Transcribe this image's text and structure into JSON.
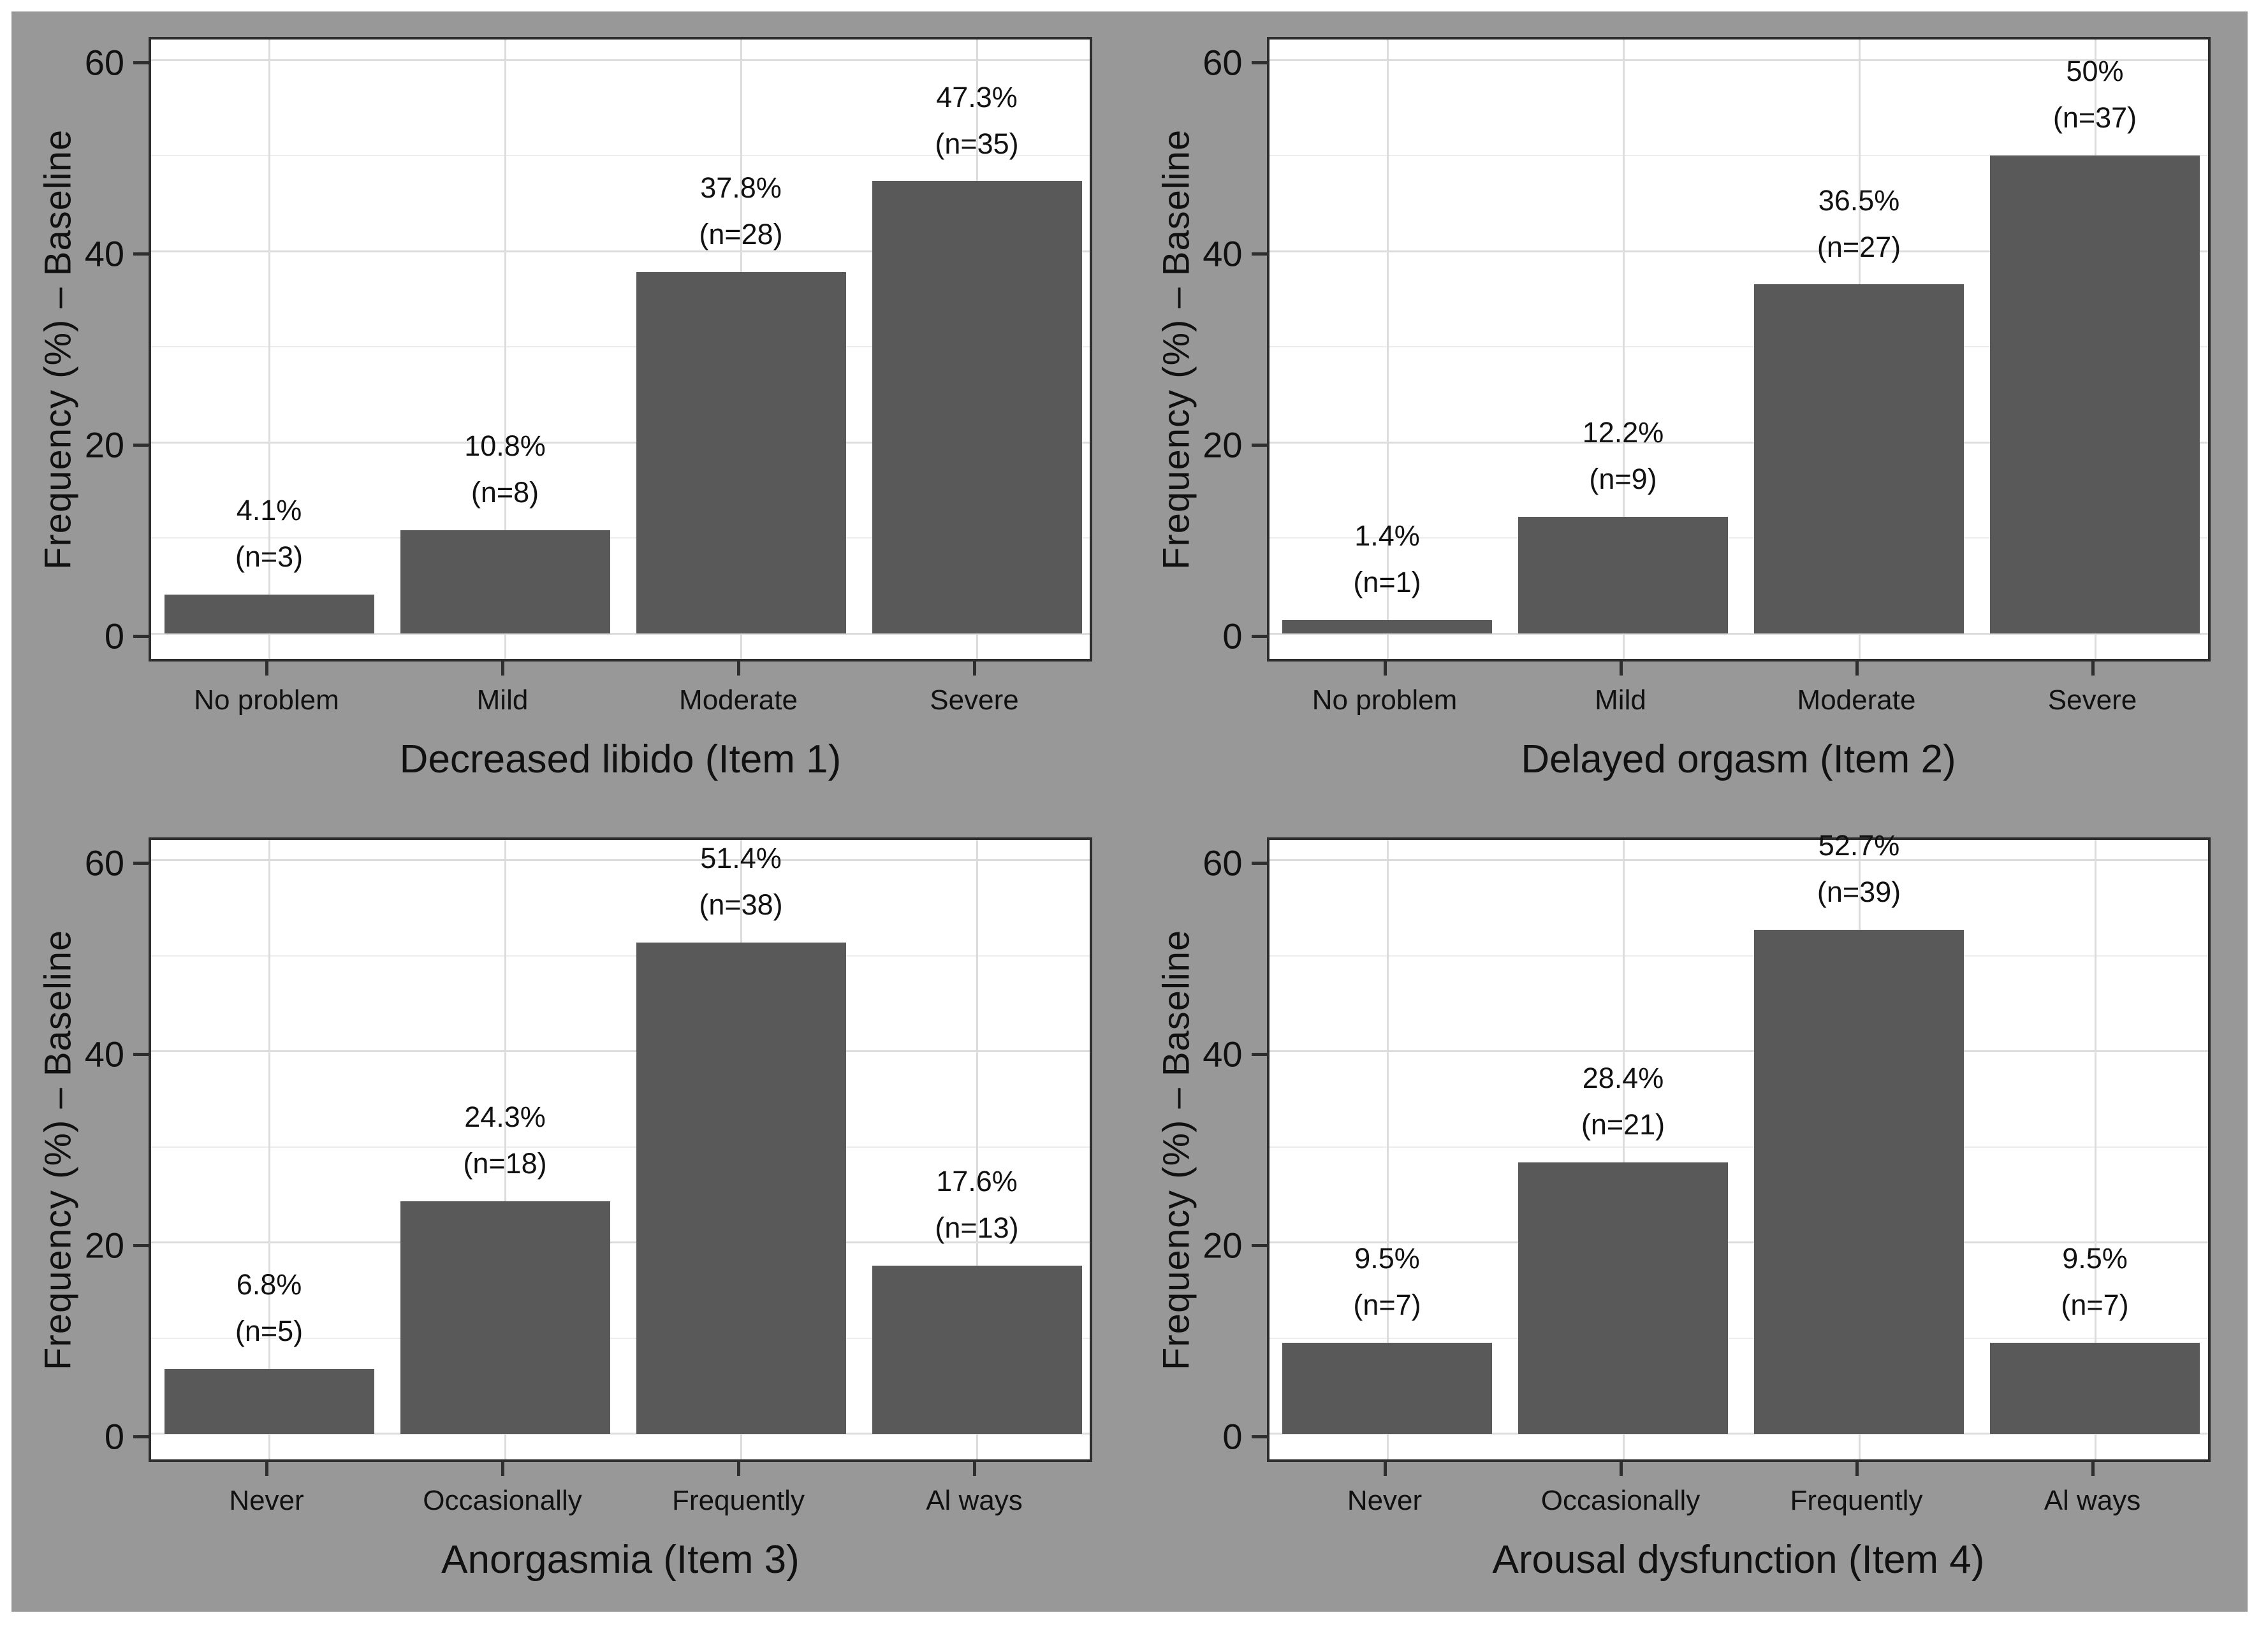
{
  "figure": {
    "background_color": "#989898",
    "panel_color": "#ffffff",
    "bar_color": "#595959",
    "grid_major_color": "#dcdcdc",
    "grid_minor_color": "#ededed",
    "border_color": "#2e2e2e",
    "text_color": "#111111",
    "y_axis_title": "Frequency (%) – Baseline",
    "y_tick_labels": [
      "0",
      "20",
      "40",
      "60"
    ]
  },
  "chart_data": [
    {
      "type": "bar",
      "name": "decreased-libido",
      "title": "",
      "xlabel": "Decreased libido (Item 1)",
      "ylabel": "Frequency (%) – Baseline",
      "categories": [
        "No problem",
        "Mild",
        "Moderate",
        "Severe"
      ],
      "values": [
        4.1,
        10.8,
        37.8,
        47.3
      ],
      "pct_labels": [
        "4.1%",
        "10.8%",
        "37.8%",
        "47.3%"
      ],
      "n_labels": [
        "(n=3)",
        "(n=8)",
        "(n=28)",
        "(n=35)"
      ],
      "yticks": [
        0,
        20,
        40,
        60
      ],
      "ylim": [
        0,
        60
      ],
      "grid": "major+minor horizontal, major vertical at category centers",
      "legend": "none"
    },
    {
      "type": "bar",
      "name": "delayed-orgasm",
      "title": "",
      "xlabel": "Delayed orgasm (Item 2)",
      "ylabel": "Frequency (%) – Baseline",
      "categories": [
        "No problem",
        "Mild",
        "Moderate",
        "Severe"
      ],
      "values": [
        1.4,
        12.2,
        36.5,
        50
      ],
      "pct_labels": [
        "1.4%",
        "12.2%",
        "36.5%",
        "50%"
      ],
      "n_labels": [
        "(n=1)",
        "(n=9)",
        "(n=27)",
        "(n=37)"
      ],
      "yticks": [
        0,
        20,
        40,
        60
      ],
      "ylim": [
        0,
        60
      ],
      "grid": "major+minor horizontal, major vertical at category centers",
      "legend": "none"
    },
    {
      "type": "bar",
      "name": "anorgasmia",
      "title": "",
      "xlabel": "Anorgasmia (Item 3)",
      "ylabel": "Frequency (%) – Baseline",
      "categories": [
        "Never",
        "Occasionally",
        "Frequently",
        "Al ways"
      ],
      "values": [
        6.8,
        24.3,
        51.4,
        17.6
      ],
      "pct_labels": [
        "6.8%",
        "24.3%",
        "51.4%",
        "17.6%"
      ],
      "n_labels": [
        "(n=5)",
        "(n=18)",
        "(n=38)",
        "(n=13)"
      ],
      "yticks": [
        0,
        20,
        40,
        60
      ],
      "ylim": [
        0,
        60
      ],
      "grid": "major+minor horizontal, major vertical at category centers",
      "legend": "none"
    },
    {
      "type": "bar",
      "name": "arousal-dysfunction",
      "title": "",
      "xlabel": "Arousal dysfunction (Item 4)",
      "ylabel": "Frequency (%) – Baseline",
      "categories": [
        "Never",
        "Occasionally",
        "Frequently",
        "Al ways"
      ],
      "values": [
        9.5,
        28.4,
        52.7,
        9.5
      ],
      "pct_labels": [
        "9.5%",
        "28.4%",
        "52.7%",
        "9.5%"
      ],
      "n_labels": [
        "(n=7)",
        "(n=21)",
        "(n=39)",
        "(n=7)"
      ],
      "yticks": [
        0,
        20,
        40,
        60
      ],
      "ylim": [
        0,
        60
      ],
      "grid": "major+minor horizontal, major vertical at category centers",
      "legend": "none"
    }
  ]
}
